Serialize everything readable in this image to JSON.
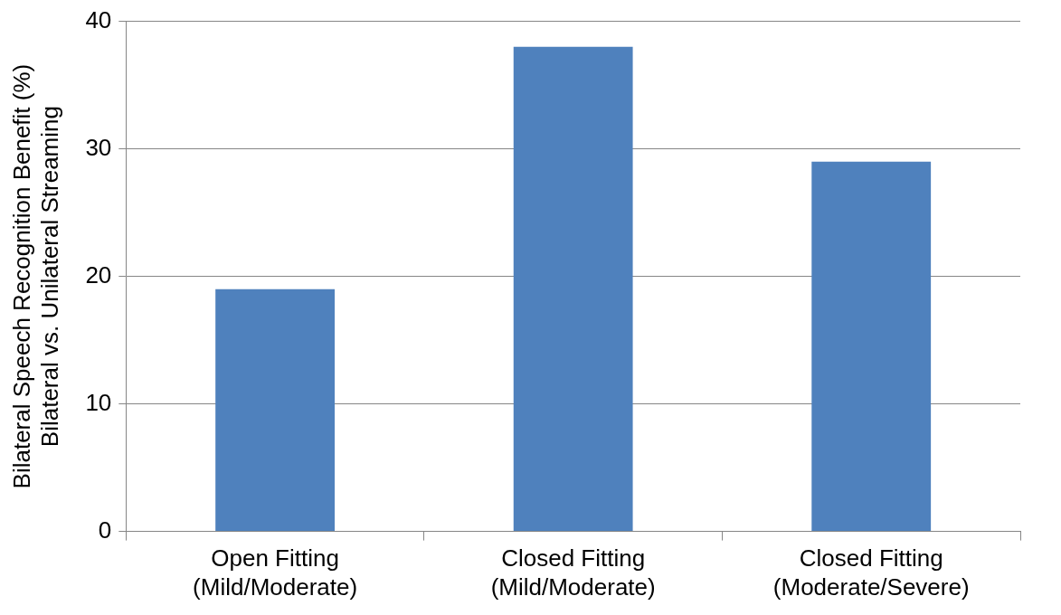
{
  "chart_data": {
    "type": "bar",
    "y_label": [
      "Bilateral Speech Recognition Benefit (%)",
      "Bilateral vs. Unilateral Streaming"
    ],
    "categories": [
      [
        "Open Fitting",
        "(Mild/Moderate)"
      ],
      [
        "Closed Fitting",
        "(Mild/Moderate)"
      ],
      [
        "Closed Fitting",
        "(Moderate/Severe)"
      ]
    ],
    "values": [
      19,
      38,
      29
    ],
    "color": "#4f81bd",
    "ylim": [
      0,
      40
    ],
    "yticks": [
      0,
      10,
      20,
      30,
      40
    ],
    "grid": true
  }
}
